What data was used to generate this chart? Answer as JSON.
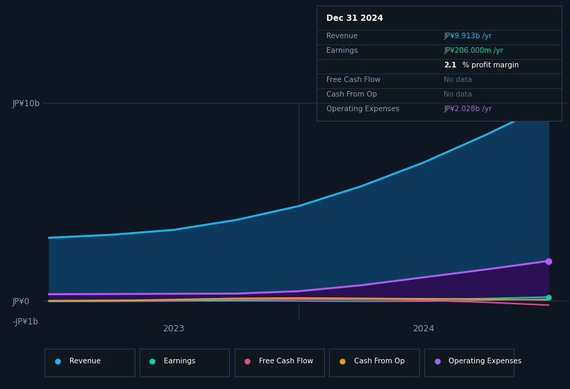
{
  "background_color": "#0e1621",
  "plot_bg_color": "#0e1621",
  "ylabel_top": "JP¥10b",
  "ylabel_zero": "JP¥0",
  "ylabel_neg": "-JP¥1b",
  "ylim": [
    -1000000000,
    10000000000
  ],
  "ytick_values": [
    -1000000000,
    0,
    10000000000
  ],
  "ytick_labels": [
    "-JP¥1b",
    "JP¥0",
    "JP¥10b"
  ],
  "revenue_x": [
    0.0,
    0.5,
    1.0,
    1.5,
    2.0,
    2.5,
    3.0,
    3.5,
    4.0
  ],
  "revenue_y": [
    3200000000,
    3350000000,
    3600000000,
    4100000000,
    4800000000,
    5800000000,
    7000000000,
    8400000000,
    9913000000
  ],
  "revenue_color": "#1ab8f0",
  "revenue_fill": "#0d3a5c",
  "opex_x": [
    0.0,
    0.5,
    1.0,
    1.5,
    2.0,
    2.5,
    3.0,
    3.5,
    4.0
  ],
  "opex_y": [
    350000000,
    360000000,
    370000000,
    380000000,
    500000000,
    800000000,
    1200000000,
    1600000000,
    2028000000
  ],
  "opex_color": "#b060f0",
  "opex_fill": "#2a1055",
  "earnings_x": [
    0.0,
    0.5,
    1.0,
    1.5,
    2.0,
    2.5,
    3.0,
    3.5,
    4.0
  ],
  "earnings_y": [
    30000000,
    40000000,
    20000000,
    60000000,
    80000000,
    70000000,
    90000000,
    130000000,
    206000000
  ],
  "earnings_color": "#00d4a8",
  "fcf_x": [
    0.0,
    0.5,
    1.0,
    1.5,
    2.0,
    2.5,
    3.0,
    3.5,
    4.0
  ],
  "fcf_y": [
    -10000000,
    20000000,
    60000000,
    100000000,
    120000000,
    80000000,
    50000000,
    -60000000,
    -200000000
  ],
  "fcf_color": "#e05080",
  "cfo_x": [
    0.0,
    0.5,
    1.0,
    1.5,
    2.0,
    2.5,
    3.0,
    3.5,
    4.0
  ],
  "cfo_y": [
    10000000,
    30000000,
    80000000,
    140000000,
    160000000,
    140000000,
    120000000,
    90000000,
    60000000
  ],
  "cfo_color": "#e0a020",
  "grey_x": [
    0.0,
    0.5,
    1.0,
    1.5,
    2.0,
    2.5,
    3.0,
    3.5,
    4.0
  ],
  "grey_y": [
    -30000000,
    -20000000,
    0,
    10000000,
    0,
    -20000000,
    -10000000,
    40000000,
    100000000
  ],
  "grey_color": "#8899aa",
  "xlim": [
    -0.05,
    4.15
  ],
  "x_tick_positions": [
    1.0,
    3.0
  ],
  "x_tick_labels": [
    "2023",
    "2024"
  ],
  "vertical_line_x": 2.0,
  "tooltip_title": "Dec 31 2024",
  "tooltip_rows": [
    {
      "label": "Revenue",
      "value": "JP¥9.913b /yr",
      "value_color": "#1ab8f0"
    },
    {
      "label": "Earnings",
      "value": "JP¥206.000m /yr",
      "value_color": "#00d4a8"
    },
    {
      "label": "",
      "value": "2.1% profit margin",
      "value_color": "#ffffff",
      "bold_end": 3
    },
    {
      "label": "Free Cash Flow",
      "value": "No data",
      "value_color": "#556677"
    },
    {
      "label": "Cash From Op",
      "value": "No data",
      "value_color": "#556677"
    },
    {
      "label": "Operating Expenses",
      "value": "JP¥2.028b /yr",
      "value_color": "#b060f0"
    }
  ],
  "legend_items": [
    {
      "label": "Revenue",
      "color": "#1ab8f0"
    },
    {
      "label": "Earnings",
      "color": "#00d4a8"
    },
    {
      "label": "Free Cash Flow",
      "color": "#e05080"
    },
    {
      "label": "Cash From Op",
      "color": "#e0a020"
    },
    {
      "label": "Operating Expenses",
      "color": "#b060f0"
    }
  ]
}
